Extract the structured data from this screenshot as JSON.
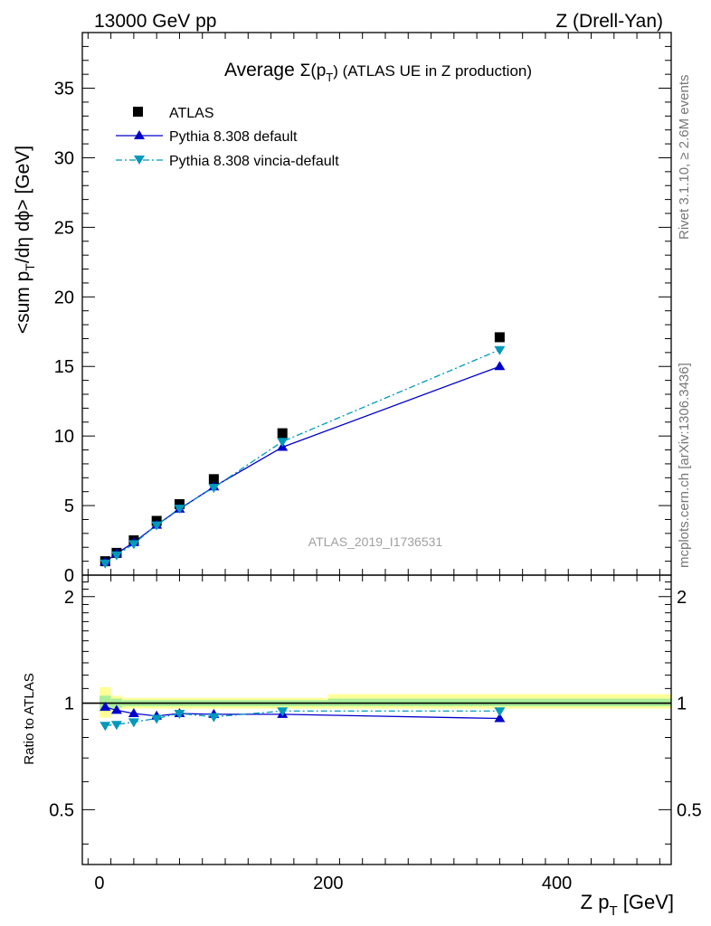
{
  "header": {
    "left": "13000 GeV pp",
    "right": "Z (Drell-Yan)"
  },
  "side_labels": {
    "rivet": "Rivet 3.1.10, ≥ 2.6M events",
    "mcplots": "mcplots.cern.ch [arXiv:1306.3436]"
  },
  "chart_data": [
    {
      "type": "line",
      "title": "Average Σ(p_T) (ATLAS UE in Z production)",
      "title_parts": {
        "pre": "Average ",
        "sigma": "Σ(p",
        "sub": "T",
        "post": ") (ATLAS UE in Z production)"
      },
      "ylabel": "<sum p_T/dη dϕ> [GeV]",
      "ylabel_parts": {
        "pre": "<sum p",
        "sub": "T",
        "post": "/dη dϕ> [GeV]"
      },
      "watermark": "ATLAS_2019_I1736531",
      "xlim": [
        -15,
        500
      ],
      "ylim": [
        0,
        39
      ],
      "y_ticks": [
        0,
        5,
        10,
        15,
        20,
        25,
        30,
        35
      ],
      "x": [
        5,
        15,
        30,
        50,
        70,
        100,
        160,
        350
      ],
      "series": [
        {
          "name": "ATLAS",
          "color": "#000000",
          "marker": "square",
          "values": [
            1.0,
            1.6,
            2.5,
            3.9,
            5.1,
            6.9,
            10.2,
            17.1
          ]
        },
        {
          "name": "Pythia 8.308 default",
          "color": "#0000cc",
          "marker": "triangle-up",
          "line": "solid",
          "values": [
            0.95,
            1.55,
            2.35,
            3.6,
            4.75,
            6.35,
            9.2,
            15.0
          ]
        },
        {
          "name": "Pythia 8.308 vincia-default",
          "color": "#0099bb",
          "marker": "triangle-down",
          "line": "dashdot",
          "values": [
            0.86,
            1.45,
            2.25,
            3.6,
            4.8,
            6.3,
            9.6,
            16.2
          ]
        }
      ]
    },
    {
      "type": "line",
      "ylabel": "Ratio to ATLAS",
      "xlabel": "Z p_T [GeV]",
      "xlabel_parts": {
        "pre": "Z p",
        "sub": "T",
        "post": " [GeV]"
      },
      "xlim": [
        -15,
        500
      ],
      "ylim": [
        0.35,
        2.3
      ],
      "y_ticks": [
        0.5,
        1,
        2
      ],
      "y_tick_labels": [
        "0.5",
        "1",
        "2"
      ],
      "x_ticks": [
        0,
        200,
        400
      ],
      "x_tick_labels": [
        "0",
        "200",
        "400"
      ],
      "x": [
        5,
        15,
        30,
        50,
        70,
        100,
        160,
        350
      ],
      "uncertainty_bands": [
        {
          "x_from": 0,
          "x_to": 10,
          "lo": 0.95,
          "hi": 1.05,
          "lo2": 0.91,
          "hi2": 1.11
        },
        {
          "x_from": 10,
          "x_to": 20,
          "lo": 0.97,
          "hi": 1.03,
          "lo2": 0.95,
          "hi2": 1.05
        },
        {
          "x_from": 20,
          "x_to": 200,
          "lo": 0.98,
          "hi": 1.02,
          "lo2": 0.965,
          "hi2": 1.035
        },
        {
          "x_from": 200,
          "x_to": 500,
          "lo": 0.98,
          "hi": 1.03,
          "lo2": 0.965,
          "hi2": 1.06
        }
      ],
      "series": [
        {
          "name": "Pythia 8.308 default",
          "color": "#0000cc",
          "marker": "triangle-up",
          "line": "solid",
          "values": [
            0.975,
            0.955,
            0.935,
            0.92,
            0.935,
            0.93,
            0.93,
            0.905
          ]
        },
        {
          "name": "Pythia 8.308 vincia-default",
          "color": "#0099bb",
          "marker": "triangle-down",
          "line": "dashdot",
          "values": [
            0.865,
            0.87,
            0.885,
            0.905,
            0.935,
            0.915,
            0.95,
            0.95
          ]
        }
      ]
    }
  ]
}
